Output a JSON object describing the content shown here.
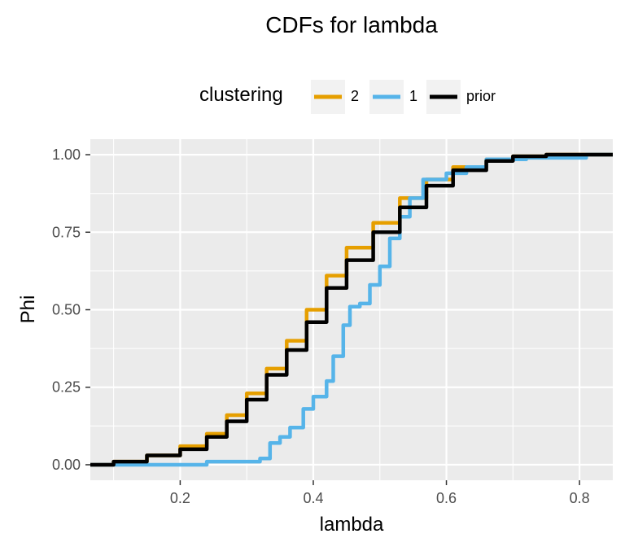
{
  "chart_data": {
    "type": "line",
    "title": "CDFs for  lambda",
    "xlabel": "lambda",
    "ylabel": "Phi",
    "xlim": [
      0.065,
      0.85
    ],
    "ylim": [
      0,
      1
    ],
    "x_ticks": [
      0.2,
      0.4,
      0.6,
      0.8
    ],
    "x_tick_labels": [
      "0.2",
      "0.4",
      "0.6",
      "0.8"
    ],
    "y_ticks": [
      0,
      0.25,
      0.5,
      0.75,
      1.0
    ],
    "y_tick_labels": [
      "0.00",
      "0.25",
      "0.50",
      "0.75",
      "1.00"
    ],
    "grid": true,
    "legend": {
      "title": "clustering",
      "position": "top"
    },
    "series": [
      {
        "name": "2",
        "color": "#E69F00",
        "points": [
          [
            0.065,
            0.0
          ],
          [
            0.1,
            0.0
          ],
          [
            0.1,
            0.01
          ],
          [
            0.15,
            0.03
          ],
          [
            0.2,
            0.06
          ],
          [
            0.24,
            0.1
          ],
          [
            0.27,
            0.16
          ],
          [
            0.3,
            0.23
          ],
          [
            0.33,
            0.31
          ],
          [
            0.36,
            0.4
          ],
          [
            0.39,
            0.5
          ],
          [
            0.42,
            0.61
          ],
          [
            0.45,
            0.7
          ],
          [
            0.49,
            0.78
          ],
          [
            0.53,
            0.86
          ],
          [
            0.57,
            0.92
          ],
          [
            0.61,
            0.96
          ],
          [
            0.66,
            0.985
          ],
          [
            0.7,
            0.995
          ],
          [
            0.75,
            1.0
          ],
          [
            0.85,
            1.0
          ]
        ]
      },
      {
        "name": "1",
        "color": "#56B4E9",
        "points": [
          [
            0.065,
            0.0
          ],
          [
            0.235,
            0.0
          ],
          [
            0.24,
            0.01
          ],
          [
            0.3,
            0.01
          ],
          [
            0.32,
            0.02
          ],
          [
            0.335,
            0.07
          ],
          [
            0.35,
            0.09
          ],
          [
            0.365,
            0.12
          ],
          [
            0.385,
            0.18
          ],
          [
            0.4,
            0.22
          ],
          [
            0.42,
            0.27
          ],
          [
            0.43,
            0.35
          ],
          [
            0.445,
            0.45
          ],
          [
            0.455,
            0.51
          ],
          [
            0.47,
            0.52
          ],
          [
            0.485,
            0.58
          ],
          [
            0.5,
            0.64
          ],
          [
            0.515,
            0.73
          ],
          [
            0.53,
            0.8
          ],
          [
            0.545,
            0.86
          ],
          [
            0.565,
            0.92
          ],
          [
            0.6,
            0.94
          ],
          [
            0.63,
            0.96
          ],
          [
            0.66,
            0.985
          ],
          [
            0.72,
            0.99
          ],
          [
            0.81,
            1.0
          ],
          [
            0.85,
            1.0
          ]
        ]
      },
      {
        "name": "prior",
        "color": "#000000",
        "points": [
          [
            0.065,
            0.0
          ],
          [
            0.1,
            0.0
          ],
          [
            0.1,
            0.01
          ],
          [
            0.15,
            0.03
          ],
          [
            0.2,
            0.05
          ],
          [
            0.24,
            0.09
          ],
          [
            0.27,
            0.14
          ],
          [
            0.3,
            0.21
          ],
          [
            0.33,
            0.29
          ],
          [
            0.36,
            0.37
          ],
          [
            0.39,
            0.46
          ],
          [
            0.42,
            0.57
          ],
          [
            0.45,
            0.66
          ],
          [
            0.49,
            0.75
          ],
          [
            0.53,
            0.83
          ],
          [
            0.57,
            0.9
          ],
          [
            0.61,
            0.95
          ],
          [
            0.66,
            0.98
          ],
          [
            0.7,
            0.995
          ],
          [
            0.75,
            1.0
          ],
          [
            0.85,
            1.0
          ]
        ]
      }
    ]
  }
}
